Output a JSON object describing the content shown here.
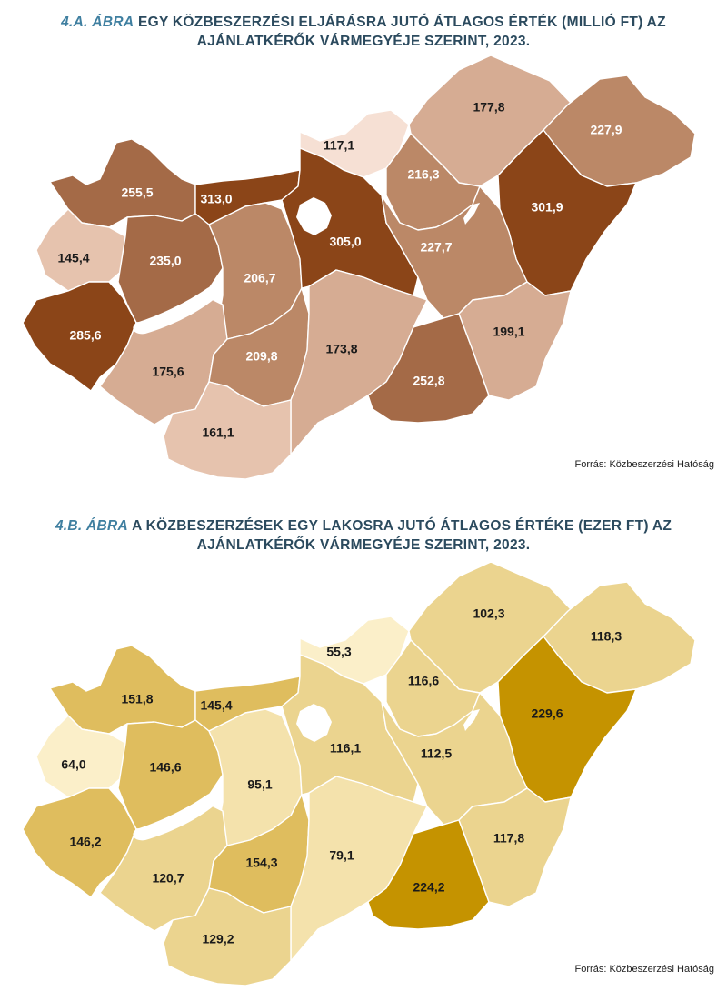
{
  "maps": [
    {
      "figure_label": "4.A. ÁBRA",
      "title_text": "EGY KÖZBESZERZÉSI ELJÁRÁSRA JUTÓ ÁTLAGOS ÉRTÉK (MILLIÓ FT) AZ AJÁNLATKÉRŐK VÁRMEGYÉJE SZERINT, 2023.",
      "source": "Forrás: Közbeszerzési Hatóság",
      "palette": {
        "c1": "#f6e0d4",
        "c2": "#e6c3ae",
        "c3": "#d6ac93",
        "c4": "#bb8867",
        "c5": "#a46a47",
        "c6": "#8b4518"
      },
      "values": {
        "gyor_moson_sopron": {
          "label": "255,5",
          "class": "c5"
        },
        "komarom_esztergom": {
          "label": "313,0",
          "class": "c6"
        },
        "nograd": {
          "label": "117,1",
          "class": "c1"
        },
        "borsod": {
          "label": "177,8",
          "class": "c3"
        },
        "szabolcs": {
          "label": "227,9",
          "class": "c4"
        },
        "vas": {
          "label": "145,4",
          "class": "c2"
        },
        "veszprem": {
          "label": "235,0",
          "class": "c5"
        },
        "fejer": {
          "label": "206,7",
          "class": "c4"
        },
        "pest": {
          "label": "305,0",
          "class": "c6"
        },
        "heves": {
          "label": "216,3",
          "class": "c4"
        },
        "hajdu_bihar": {
          "label": "301,9",
          "class": "c6"
        },
        "jasz_nagykun_szolnok": {
          "label": "227,7",
          "class": "c4"
        },
        "zala": {
          "label": "285,6",
          "class": "c6"
        },
        "somogy": {
          "label": "175,6",
          "class": "c3"
        },
        "tolna": {
          "label": "209,8",
          "class": "c4"
        },
        "bacs_kiskun": {
          "label": "173,8",
          "class": "c3"
        },
        "csongrad": {
          "label": "252,8",
          "class": "c5"
        },
        "bekes": {
          "label": "199,1",
          "class": "c3"
        },
        "baranya": {
          "label": "161,1",
          "class": "c2"
        }
      }
    },
    {
      "figure_label": "4.B. ÁBRA",
      "title_text": "A KÖZBESZERZÉSEK EGY LAKOSRA JUTÓ ÁTLAGOS ÉRTÉKE (EZER FT) AZ AJÁNLATKÉRŐK VÁRMEGYÉJE SZERINT, 2023.",
      "source": "Forrás: Közbeszerzési Hatóság",
      "palette": {
        "c1": "#fbefc9",
        "c2": "#f4e2ac",
        "c3": "#ebd48f",
        "c4": "#dfbd5e",
        "c5": "#c59300"
      },
      "values": {
        "gyor_moson_sopron": {
          "label": "151,8",
          "class": "c4"
        },
        "komarom_esztergom": {
          "label": "145,4",
          "class": "c4"
        },
        "nograd": {
          "label": "55,3",
          "class": "c1"
        },
        "borsod": {
          "label": "102,3",
          "class": "c3"
        },
        "szabolcs": {
          "label": "118,3",
          "class": "c3"
        },
        "vas": {
          "label": "64,0",
          "class": "c1"
        },
        "veszprem": {
          "label": "146,6",
          "class": "c4"
        },
        "fejer": {
          "label": "95,1",
          "class": "c2"
        },
        "pest": {
          "label": "116,1",
          "class": "c3"
        },
        "heves": {
          "label": "116,6",
          "class": "c3"
        },
        "hajdu_bihar": {
          "label": "229,6",
          "class": "c5"
        },
        "jasz_nagykun_szolnok": {
          "label": "112,5",
          "class": "c3"
        },
        "zala": {
          "label": "146,2",
          "class": "c4"
        },
        "somogy": {
          "label": "120,7",
          "class": "c3"
        },
        "tolna": {
          "label": "154,3",
          "class": "c4"
        },
        "bacs_kiskun": {
          "label": "79,1",
          "class": "c2"
        },
        "csongrad": {
          "label": "224,2",
          "class": "c5"
        },
        "bekes": {
          "label": "117,8",
          "class": "c3"
        },
        "baranya": {
          "label": "129,2",
          "class": "c3"
        }
      }
    }
  ]
}
